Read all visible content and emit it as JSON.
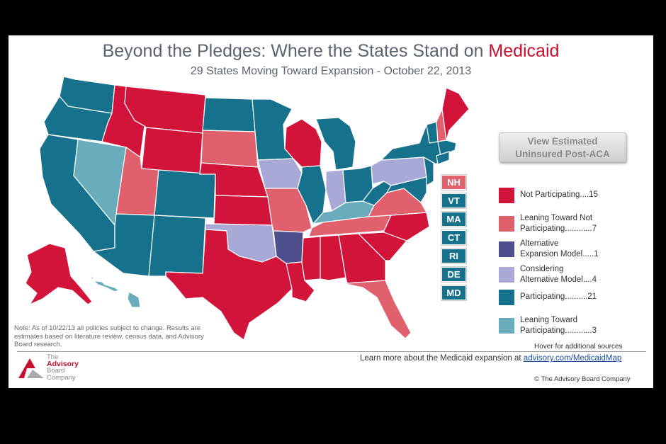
{
  "title_main": "Beyond the Pledges: Where the States Stand on ",
  "title_accent": "Medicaid",
  "subtitle": "29 States Moving Toward Expansion - October 22, 2013",
  "view_button": {
    "line1": "View Estimated",
    "line2": "Uninsured Post-ACA"
  },
  "colors": {
    "not_participating": "#d2143a",
    "leaning_not": "#e0606e",
    "alternative": "#4e4f8c",
    "considering": "#a9a9d8",
    "participating": "#16728c",
    "leaning_toward": "#69adbd"
  },
  "small_states": [
    {
      "abbr": "NH",
      "category": "leaning_not"
    },
    {
      "abbr": "VT",
      "category": "participating"
    },
    {
      "abbr": "MA",
      "category": "participating"
    },
    {
      "abbr": "CT",
      "category": "participating"
    },
    {
      "abbr": "RI",
      "category": "participating"
    },
    {
      "abbr": "DE",
      "category": "participating"
    },
    {
      "abbr": "MD",
      "category": "participating"
    }
  ],
  "legend": [
    {
      "key": "not_participating",
      "label": "Not Participating....15"
    },
    {
      "key": "leaning_not",
      "label": "Leaning Toward Not\nParticipating............7"
    },
    {
      "key": "alternative",
      "label": "Alternative\nExpansion Model.....1"
    },
    {
      "key": "considering",
      "label": "Considering\nAlternative Model....4"
    },
    {
      "key": "participating",
      "label": "Participating..........21"
    },
    {
      "key": "leaning_toward",
      "label": "Leaning Toward\nParticipating............3"
    }
  ],
  "note": "Note: As of 10/22/13 all policies subject to change. Results are estimates based on literature review, census data, and Advisory Board research.",
  "hover_note": "Hover for additional sources",
  "learn_text": "Learn more about the Medicaid expansion at ",
  "learn_link": "advisory.com/MedicaidMap",
  "copyright": "© The Advisory Board Company",
  "logo": {
    "line1": "The",
    "line2": "Advisory",
    "line3": "Board",
    "line4": "Company"
  }
}
